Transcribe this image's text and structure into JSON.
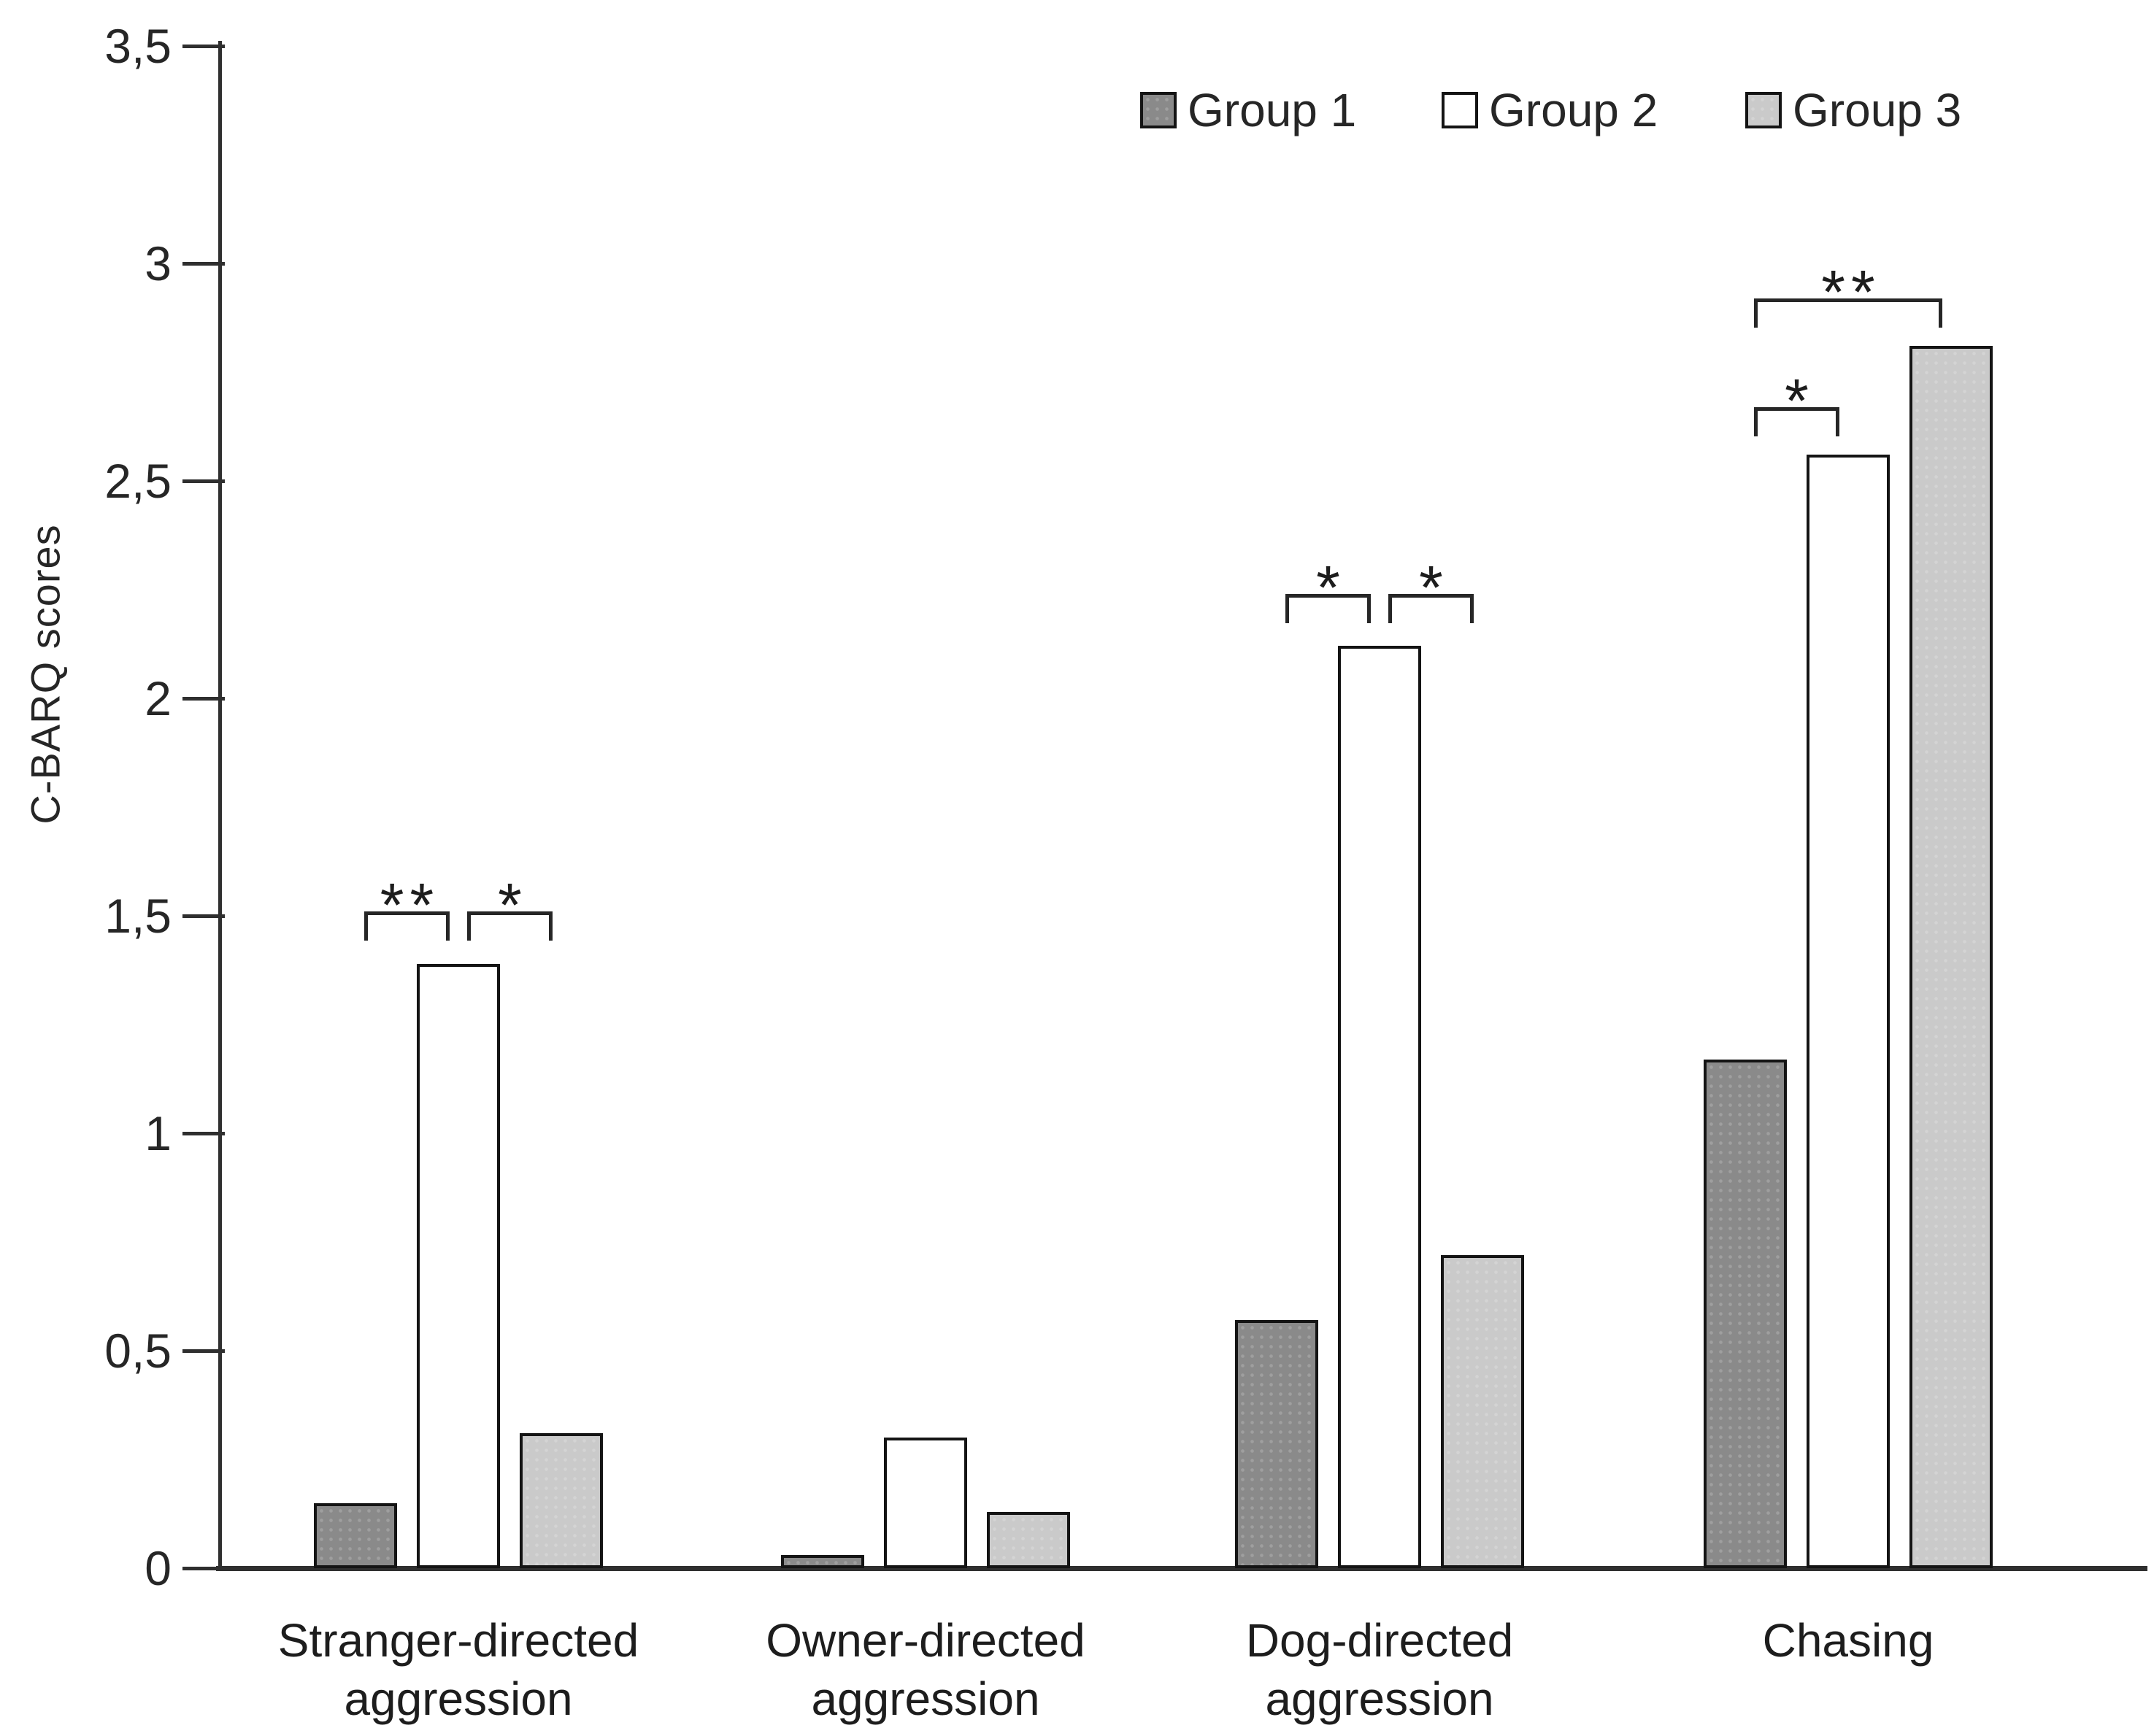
{
  "chart_data": {
    "type": "bar",
    "title": "",
    "xlabel": "",
    "ylabel": "C-BARQ scores",
    "ylim": [
      0,
      3.5
    ],
    "grid": false,
    "legend_position": "top-right",
    "decimal_separator": ",",
    "yticks": [
      {
        "value": 0,
        "label": "0"
      },
      {
        "value": 0.5,
        "label": "0,5"
      },
      {
        "value": 1,
        "label": "1"
      },
      {
        "value": 1.5,
        "label": "1,5"
      },
      {
        "value": 2,
        "label": "2"
      },
      {
        "value": 2.5,
        "label": "2,5"
      },
      {
        "value": 3,
        "label": "3"
      },
      {
        "value": 3.5,
        "label": "3,5"
      }
    ],
    "categories": [
      {
        "name": "Stranger-directed aggression",
        "lines": [
          "Stranger-directed",
          "aggression"
        ]
      },
      {
        "name": "Owner-directed aggression",
        "lines": [
          "Owner-directed",
          "aggression"
        ]
      },
      {
        "name": "Dog-directed aggression",
        "lines": [
          "Dog-directed",
          "aggression"
        ]
      },
      {
        "name": "Chasing",
        "lines": [
          "Chasing"
        ]
      }
    ],
    "series": [
      {
        "name": "Group 1",
        "color": "#8a8a8a",
        "border_color": "#141414",
        "values": [
          0.15,
          0.03,
          0.57,
          1.17
        ]
      },
      {
        "name": "Group 2",
        "color": "#ffffff",
        "border_color": "#141414",
        "values": [
          1.39,
          0.3,
          2.12,
          2.56
        ]
      },
      {
        "name": "Group 3",
        "color": "#cacaca",
        "border_color": "#141414",
        "values": [
          0.31,
          0.13,
          0.72,
          2.81
        ]
      }
    ],
    "significance": [
      {
        "category": 0,
        "from_series": 0,
        "to_series": 1,
        "label": "**",
        "y": 1.51
      },
      {
        "category": 0,
        "from_series": 1,
        "to_series": 2,
        "label": "*",
        "y": 1.51
      },
      {
        "category": 2,
        "from_series": 0,
        "to_series": 1,
        "label": "*",
        "y": 2.24
      },
      {
        "category": 2,
        "from_series": 1,
        "to_series": 2,
        "label": "*",
        "y": 2.24
      },
      {
        "category": 3,
        "from_series": 0,
        "to_series": 1,
        "label": "*",
        "y": 2.67
      },
      {
        "category": 3,
        "from_series": 0,
        "to_series": 2,
        "label": "**",
        "y": 2.92
      }
    ]
  }
}
